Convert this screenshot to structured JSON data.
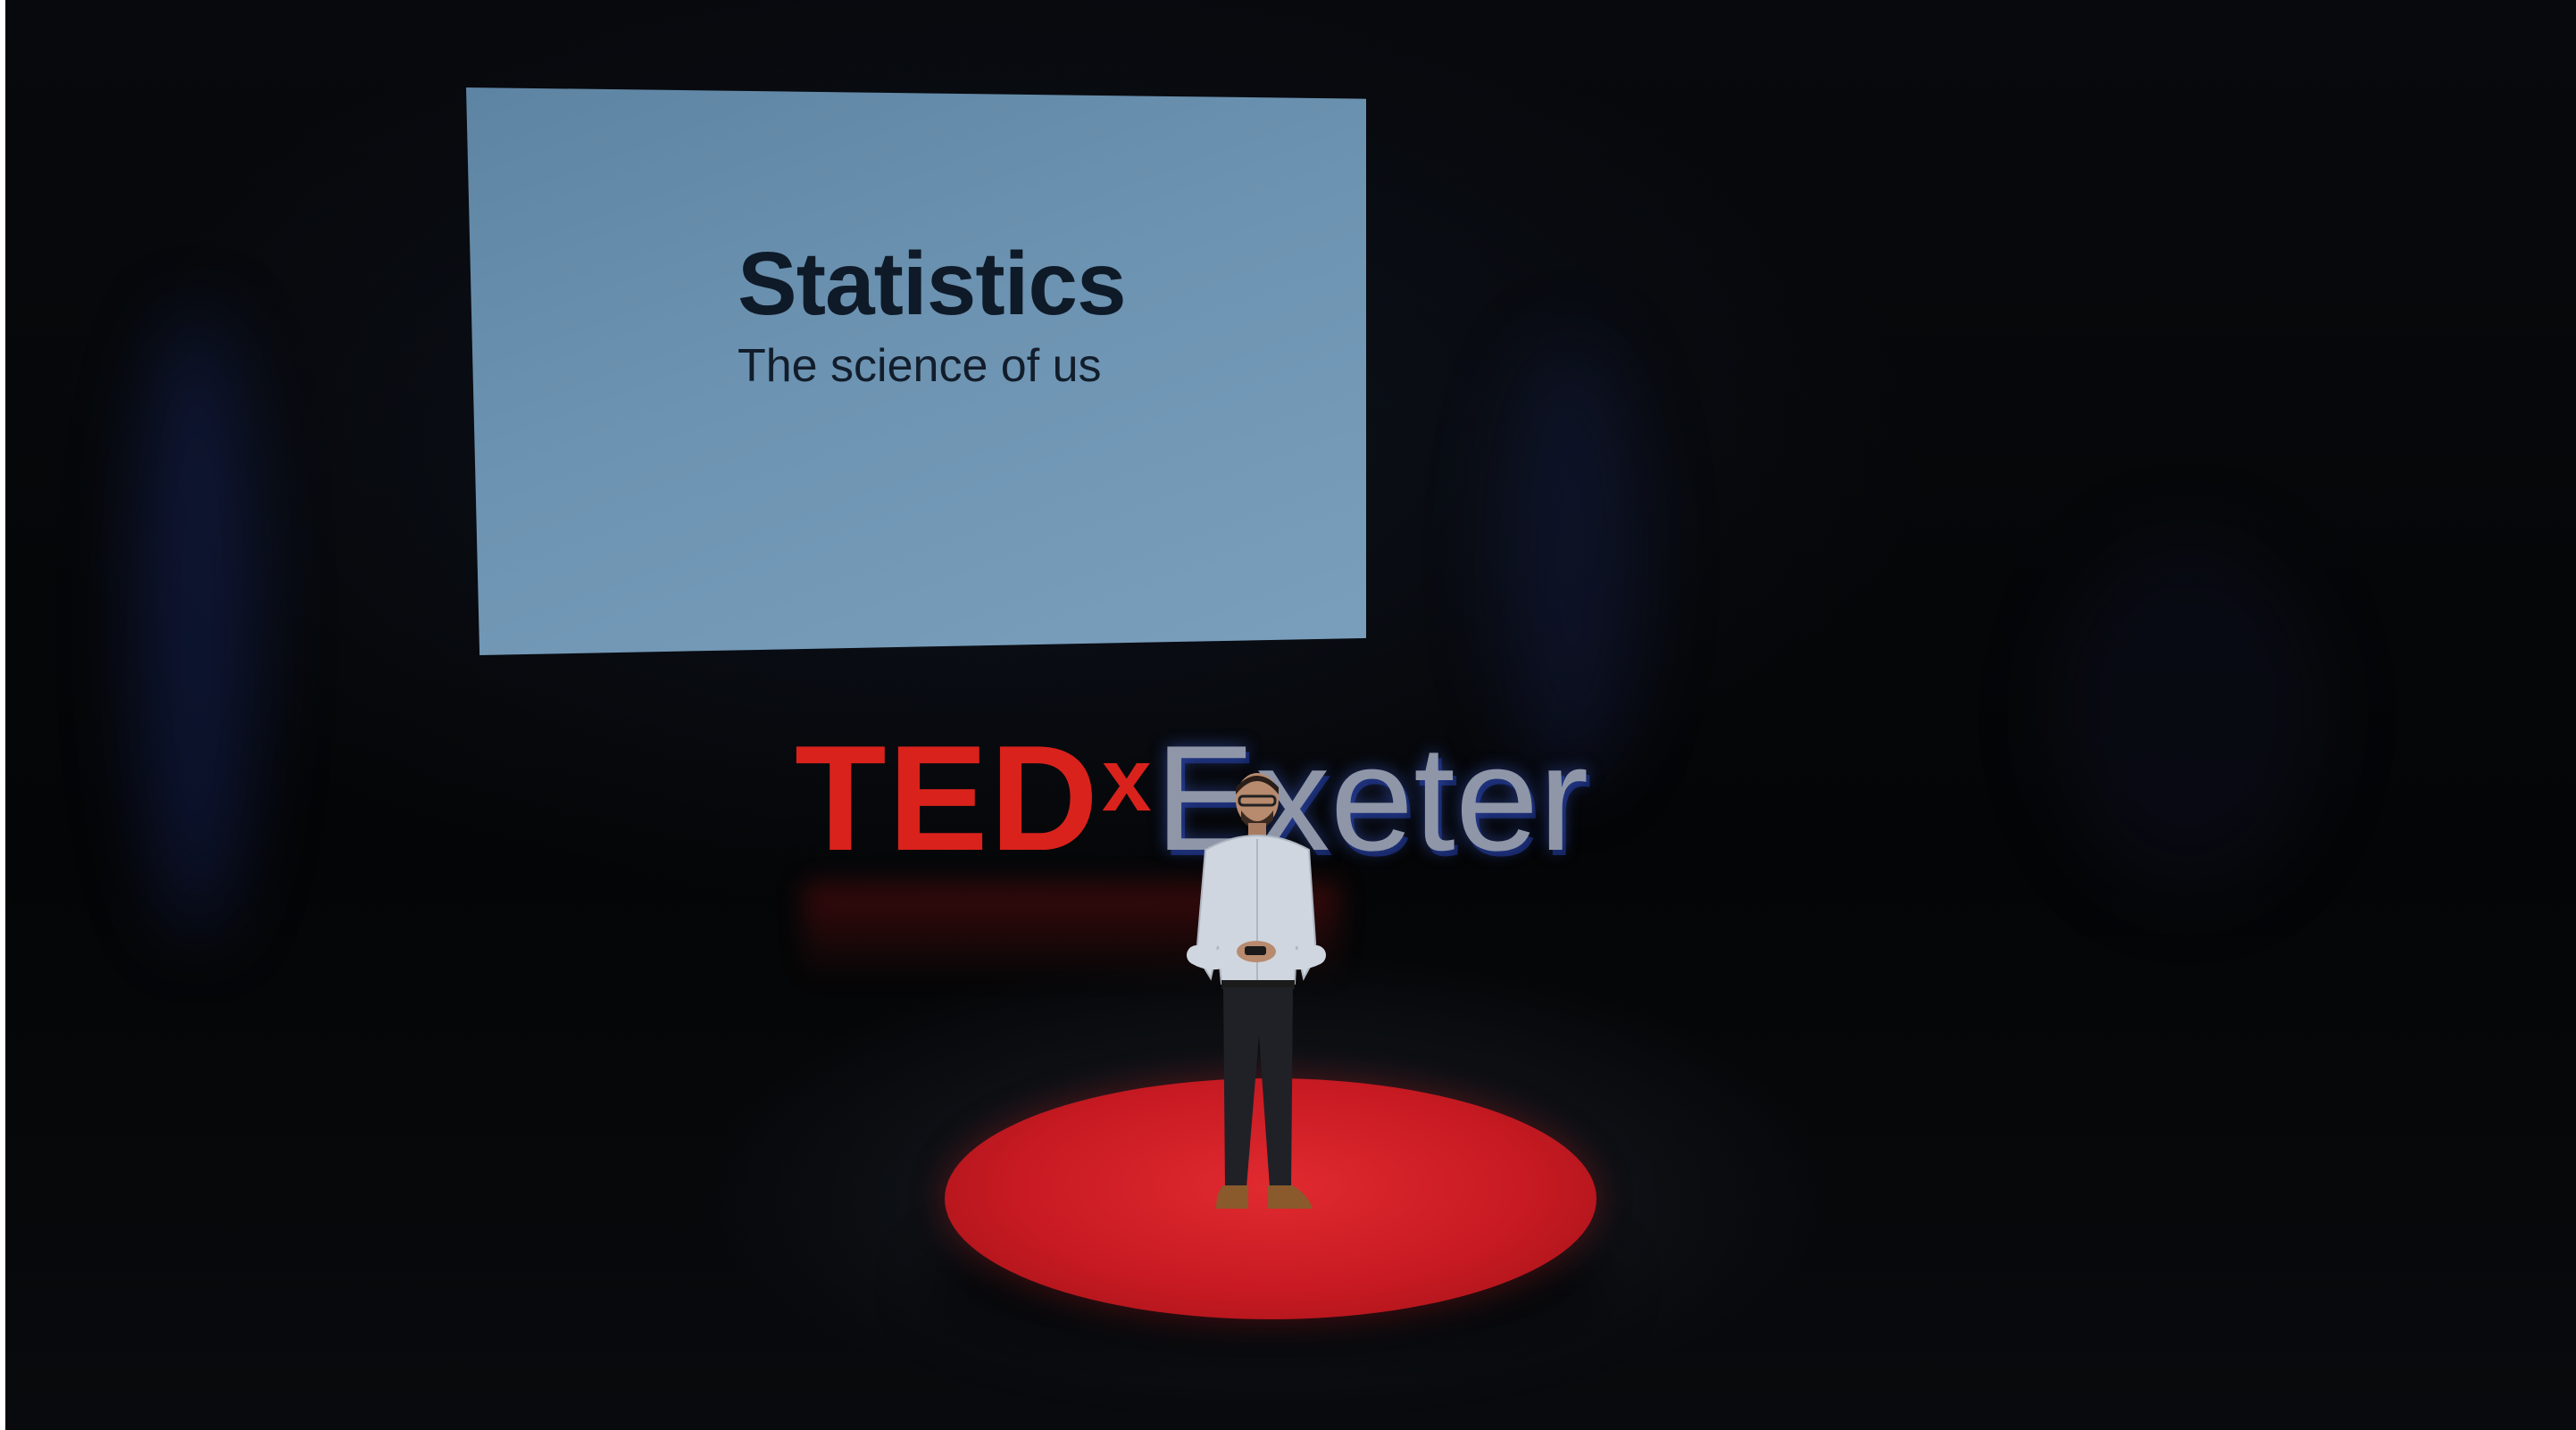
{
  "slide": {
    "title": "Statistics",
    "subtitle": "The science of us"
  },
  "logo": {
    "brand": "TED",
    "x": "x",
    "city": "Exeter"
  },
  "colors": {
    "background": "#050505",
    "slide_background": "#6c93b1",
    "slide_text": "#0f1a28",
    "ted_red": "#d9221c",
    "city_grey": "#8e96a8",
    "carpet_red": "#c81a22"
  }
}
